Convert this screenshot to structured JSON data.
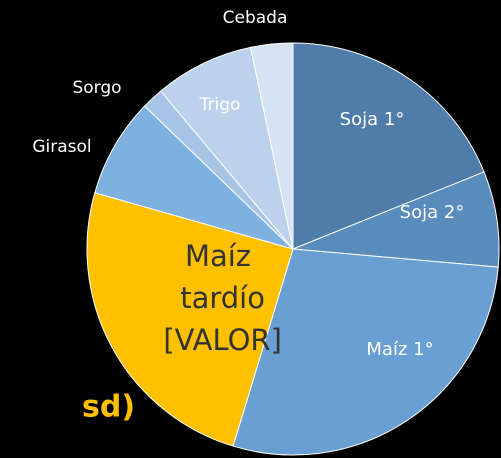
{
  "chart_data": {
    "type": "pie",
    "title": "sd)",
    "categories": [
      "Soja 1°",
      "Soja 2°",
      "Maíz 1°",
      "Maíz tardío [VALOR]",
      "Girasol",
      "Sorgo",
      "Trigo",
      "Cebada"
    ],
    "values": [
      18.9,
      7.5,
      28.3,
      24.7,
      7.8,
      1.7,
      7.8,
      3.3
    ],
    "colors": [
      "#4f7ca8",
      "#5a8cbd",
      "#6a9fd3",
      "#ffc000",
      "#7eb1e0",
      "#a6c5e6",
      "#bcd2ec",
      "#d5e3f3"
    ]
  }
}
